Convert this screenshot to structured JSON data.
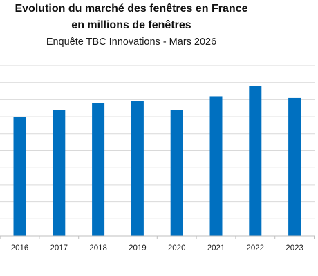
{
  "chart_data": {
    "type": "bar",
    "title": "Evolution du marché des fenêtres en France",
    "title_line2": "en millions de fenêtres",
    "subtitle": "Enquête TBC Innovations - Mars 2026",
    "categories": [
      "2016",
      "2017",
      "2018",
      "2019",
      "2020",
      "2021",
      "2022",
      "2023"
    ],
    "values": [
      7.0,
      7.4,
      7.8,
      7.9,
      7.4,
      8.2,
      8.8,
      8.1
    ],
    "ylim": [
      0,
      10
    ],
    "y_grid_step": 1,
    "grid": true,
    "legend": "none",
    "xlabel": "",
    "ylabel": "",
    "bar_color": "#0070C0",
    "grid_color": "#d9d9d9",
    "axis_color": "#bfbfbf"
  }
}
